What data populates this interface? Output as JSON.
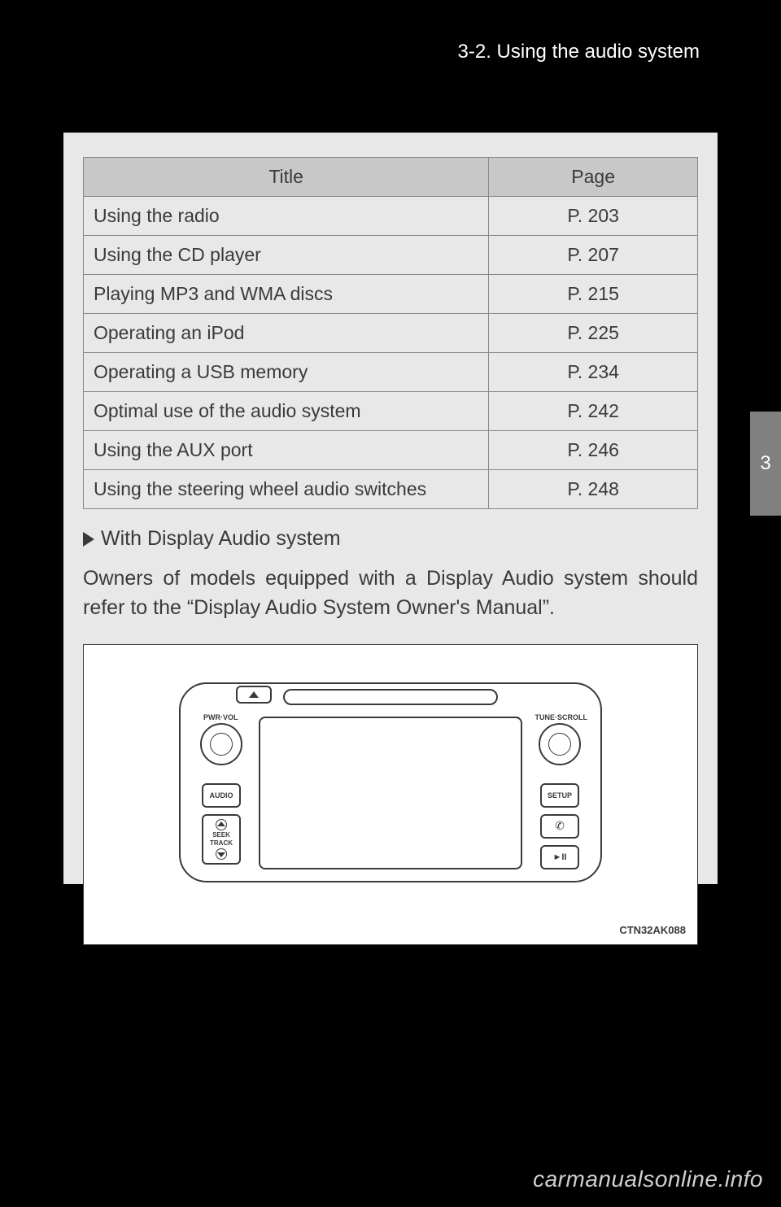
{
  "header": {
    "section": "3-2. Using the audio system"
  },
  "table": {
    "columns": [
      "Title",
      "Page"
    ],
    "rows": [
      {
        "title": "Using the radio",
        "page": "P. 203"
      },
      {
        "title": "Using the CD player",
        "page": "P. 207"
      },
      {
        "title": "Playing MP3 and WMA discs",
        "page": "P. 215"
      },
      {
        "title": "Operating an iPod",
        "page": "P. 225"
      },
      {
        "title": "Operating a USB memory",
        "page": "P. 234"
      },
      {
        "title": "Optimal use of the audio system",
        "page": "P. 242"
      },
      {
        "title": "Using the AUX port",
        "page": "P. 246"
      },
      {
        "title": "Using the steering wheel audio switches",
        "page": "P. 248"
      }
    ],
    "header_bg": "#c8c8c8",
    "border_color": "#888888",
    "fontsize": 23
  },
  "subheading": "With Display Audio system",
  "body_paragraph": "Owners of models equipped with a Display Audio system should refer to the “Display Audio System Owner's Manual”.",
  "figure": {
    "code": "CTN32AK088",
    "labels": {
      "pwr_vol": "PWR·VOL",
      "tune_scroll": "TUNE·SCROLL",
      "audio": "AUDIO",
      "setup": "SETUP",
      "seek": "SEEK",
      "track": "TRACK",
      "play_pause": "►II",
      "phone": "✆"
    },
    "colors": {
      "stroke": "#3a3a3a",
      "bg": "#ffffff"
    }
  },
  "side_tab": "3",
  "watermark": "carmanualsonline.info",
  "colors": {
    "page_bg": "#000000",
    "content_bg": "#e8e8e8",
    "text": "#3a3a3a",
    "header_text": "#ffffff",
    "tab_bg": "#808080",
    "watermark": "#cfcfcf"
  }
}
